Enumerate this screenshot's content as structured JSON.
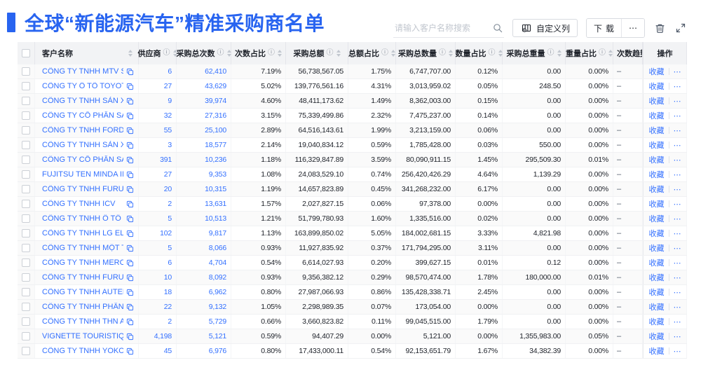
{
  "header": {
    "title": "全球“新能源汽车”精准采购商名单",
    "search_placeholder": "请输入客户名称搜索",
    "customize_columns_label": "自定义列",
    "download_label": "下载",
    "more_label": "⋯",
    "accent_color": "#2864f0",
    "link_color": "#3370ff"
  },
  "table": {
    "icons": {
      "info": "ⓘ"
    },
    "row_actions": {
      "favorite": "收藏",
      "more": "⋯"
    },
    "columns": [
      {
        "key": "name",
        "label": "客户名称",
        "info": false,
        "sort": true
      },
      {
        "key": "supplier",
        "label": "供应商",
        "info": true,
        "sort": true
      },
      {
        "key": "times",
        "label": "采购总次数",
        "info": true,
        "sort": true
      },
      {
        "key": "times_pct",
        "label": "次数占比",
        "info": true,
        "sort": true
      },
      {
        "key": "amount",
        "label": "采购总额",
        "info": true,
        "sort": true
      },
      {
        "key": "amount_pct",
        "label": "总额占比",
        "info": true,
        "sort": true
      },
      {
        "key": "qty",
        "label": "采购总数量",
        "info": true,
        "sort": true
      },
      {
        "key": "qty_pct",
        "label": "数量占比",
        "info": true,
        "sort": true
      },
      {
        "key": "weight",
        "label": "采购总重量",
        "info": true,
        "sort": true
      },
      {
        "key": "weight_pct",
        "label": "重量占比",
        "info": true,
        "sort": true
      },
      {
        "key": "trend",
        "label": "次数趋势",
        "info": false,
        "sort": false
      },
      {
        "key": "ops",
        "label": "操作",
        "info": false,
        "sort": false
      }
    ],
    "rows": [
      {
        "name": "CÔNG TY TNHH MTV SẢN XUẤ...",
        "supplier": "6",
        "times": "62,410",
        "times_pct": "7.19%",
        "amount": "56,738,567.05",
        "amount_pct": "1.75%",
        "qty": "6,747,707.00",
        "qty_pct": "0.12%",
        "weight": "0.00",
        "weight_pct": "0.00%",
        "trend": "–"
      },
      {
        "name": "CÔNG TY Ô TÔ TOYOTA VIỆT ...",
        "supplier": "27",
        "times": "43,629",
        "times_pct": "5.02%",
        "amount": "139,776,561.16",
        "amount_pct": "4.31%",
        "qty": "3,013,959.02",
        "qty_pct": "0.05%",
        "weight": "248.50",
        "weight_pct": "0.00%",
        "trend": "–"
      },
      {
        "name": "CÔNG TY TNHH SẢN XUẤT VÀ ...",
        "supplier": "9",
        "times": "39,974",
        "times_pct": "4.60%",
        "amount": "48,411,173.62",
        "amount_pct": "1.49%",
        "qty": "8,362,003.00",
        "qty_pct": "0.15%",
        "weight": "0.00",
        "weight_pct": "0.00%",
        "trend": "–"
      },
      {
        "name": "CÔNG TY CỔ PHẦN SẢN XUẤT...",
        "supplier": "32",
        "times": "27,316",
        "times_pct": "3.15%",
        "amount": "75,339,499.86",
        "amount_pct": "2.32%",
        "qty": "7,475,237.00",
        "qty_pct": "0.14%",
        "weight": "0.00",
        "weight_pct": "0.00%",
        "trend": "–"
      },
      {
        "name": "CÔNG TY TNHH FORD VIỆT NAM",
        "supplier": "55",
        "times": "25,100",
        "times_pct": "2.89%",
        "amount": "64,516,143.61",
        "amount_pct": "1.99%",
        "qty": "3,213,159.00",
        "qty_pct": "0.06%",
        "weight": "0.00",
        "weight_pct": "0.00%",
        "trend": "–"
      },
      {
        "name": "CÔNG TY TNHH SẢN XUẤT VÀ ...",
        "supplier": "3",
        "times": "18,577",
        "times_pct": "2.14%",
        "amount": "19,040,834.12",
        "amount_pct": "0.59%",
        "qty": "1,785,428.00",
        "qty_pct": "0.03%",
        "weight": "550.00",
        "weight_pct": "0.00%",
        "trend": "–"
      },
      {
        "name": "CÔNG TY CỔ PHẦN SẢN XUẤT...",
        "supplier": "391",
        "times": "10,236",
        "times_pct": "1.18%",
        "amount": "116,329,847.89",
        "amount_pct": "3.59%",
        "qty": "80,090,911.15",
        "qty_pct": "1.45%",
        "weight": "295,509.30",
        "weight_pct": "0.01%",
        "trend": "–"
      },
      {
        "name": "FUJITSU TEN MINDA INDIA PVT...",
        "supplier": "27",
        "times": "9,353",
        "times_pct": "1.08%",
        "amount": "24,083,529.10",
        "amount_pct": "0.74%",
        "qty": "256,420,426.29",
        "qty_pct": "4.64%",
        "weight": "1,139.29",
        "weight_pct": "0.00%",
        "trend": "–"
      },
      {
        "name": "CÔNG TY TNHH FURUKAWA A...",
        "supplier": "20",
        "times": "10,315",
        "times_pct": "1.19%",
        "amount": "14,657,823.89",
        "amount_pct": "0.45%",
        "qty": "341,268,232.00",
        "qty_pct": "6.17%",
        "weight": "0.00",
        "weight_pct": "0.00%",
        "trend": "–"
      },
      {
        "name": "CÔNG TY TNHH ICV",
        "supplier": "2",
        "times": "13,631",
        "times_pct": "1.57%",
        "amount": "2,027,827.15",
        "amount_pct": "0.06%",
        "qty": "97,378.00",
        "qty_pct": "0.00%",
        "weight": "0.00",
        "weight_pct": "0.00%",
        "trend": "–"
      },
      {
        "name": "CÔNG TY TNHH Ô TÔ MITSUBI...",
        "supplier": "5",
        "times": "10,513",
        "times_pct": "1.21%",
        "amount": "51,799,780.93",
        "amount_pct": "1.60%",
        "qty": "1,335,516.00",
        "qty_pct": "0.02%",
        "weight": "0.00",
        "weight_pct": "0.00%",
        "trend": "–"
      },
      {
        "name": "CÔNG TY TNHH LG ELECTRON...",
        "supplier": "102",
        "times": "9,817",
        "times_pct": "1.13%",
        "amount": "163,899,850.02",
        "amount_pct": "5.05%",
        "qty": "184,002,681.15",
        "qty_pct": "3.33%",
        "weight": "4,821.98",
        "weight_pct": "0.00%",
        "trend": "–"
      },
      {
        "name": "CÔNG TY TNHH MỘT THÀNH V...",
        "supplier": "5",
        "times": "8,066",
        "times_pct": "0.93%",
        "amount": "11,927,835.92",
        "amount_pct": "0.37%",
        "qty": "171,794,295.00",
        "qty_pct": "3.11%",
        "weight": "0.00",
        "weight_pct": "0.00%",
        "trend": "–"
      },
      {
        "name": "CÔNG TY TNHH MERCEDES–B...",
        "supplier": "6",
        "times": "4,704",
        "times_pct": "0.54%",
        "amount": "6,614,027.93",
        "amount_pct": "0.20%",
        "qty": "399,627.15",
        "qty_pct": "0.01%",
        "weight": "0.12",
        "weight_pct": "0.00%",
        "trend": "–"
      },
      {
        "name": "CÔNG TY TNHH FURUKAWA A...",
        "supplier": "10",
        "times": "8,092",
        "times_pct": "0.93%",
        "amount": "9,356,382.12",
        "amount_pct": "0.29%",
        "qty": "98,570,474.00",
        "qty_pct": "1.78%",
        "weight": "180,000.00",
        "weight_pct": "0.01%",
        "trend": "–"
      },
      {
        "name": "CÔNG TY TNHH AUTEL VIỆT N...",
        "supplier": "18",
        "times": "6,962",
        "times_pct": "0.80%",
        "amount": "27,987,066.93",
        "amount_pct": "0.86%",
        "qty": "135,428,338.71",
        "qty_pct": "2.45%",
        "weight": "0.00",
        "weight_pct": "0.00%",
        "trend": "–"
      },
      {
        "name": "CÔNG TY TNHH PHÂN PHỐI T...",
        "supplier": "22",
        "times": "9,132",
        "times_pct": "1.05%",
        "amount": "2,298,989.35",
        "amount_pct": "0.07%",
        "qty": "173,054.00",
        "qty_pct": "0.00%",
        "weight": "0.00",
        "weight_pct": "0.00%",
        "trend": "–"
      },
      {
        "name": "CÔNG TY TNHH THN AUTOPAR...",
        "supplier": "2",
        "times": "5,729",
        "times_pct": "0.66%",
        "amount": "3,660,823.82",
        "amount_pct": "0.11%",
        "qty": "99,045,515.00",
        "qty_pct": "1.79%",
        "weight": "0.00",
        "weight_pct": "0.00%",
        "trend": "–"
      },
      {
        "name": "VIGNETTE TOURISTIQUE G UNI...",
        "supplier": "4,198",
        "times": "5,121",
        "times_pct": "0.59%",
        "amount": "94,407.29",
        "amount_pct": "0.00%",
        "qty": "5,121.00",
        "qty_pct": "0.00%",
        "weight": "1,355,983.00",
        "weight_pct": "0.05%",
        "trend": "–"
      },
      {
        "name": "CÔNG TY TNHH YOKOWO VIỆT...",
        "supplier": "45",
        "times": "6,976",
        "times_pct": "0.80%",
        "amount": "17,433,000.11",
        "amount_pct": "0.54%",
        "qty": "92,153,651.79",
        "qty_pct": "1.67%",
        "weight": "34,382.39",
        "weight_pct": "0.00%",
        "trend": "–"
      }
    ]
  }
}
